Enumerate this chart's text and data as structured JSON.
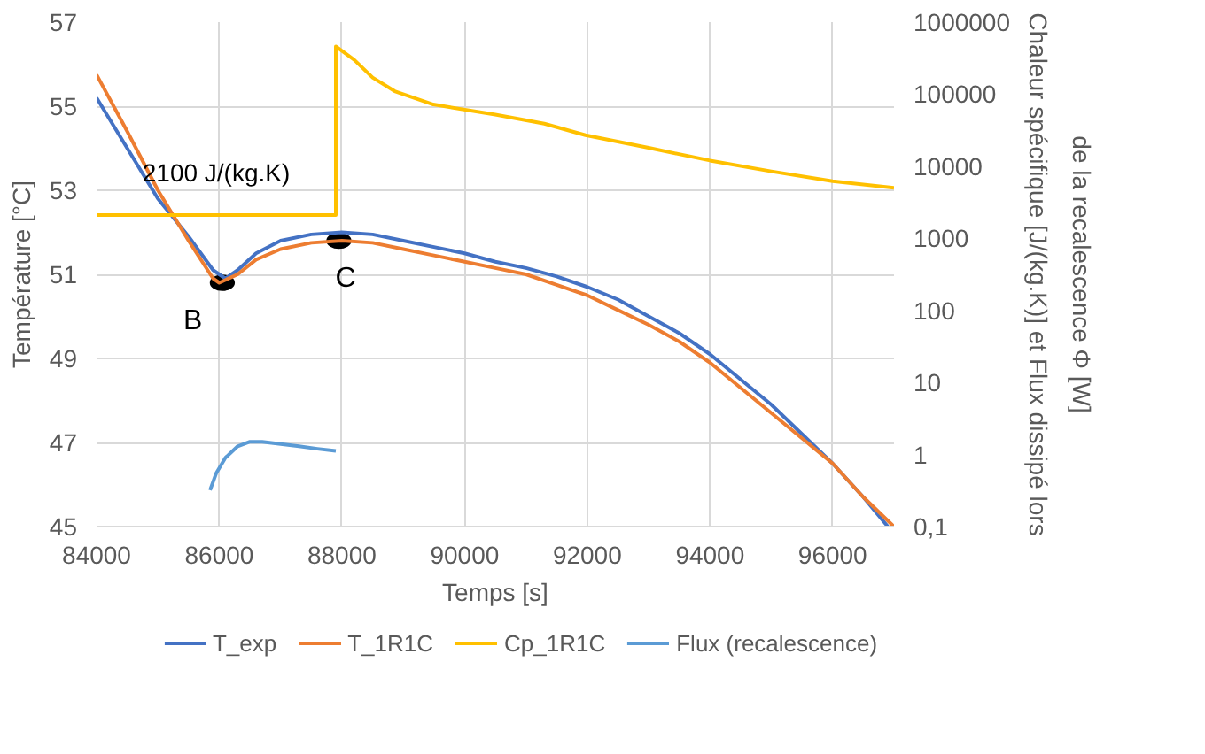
{
  "chart_data": {
    "type": "line",
    "xlabel": "Temps [s]",
    "ylabel": "Température [°C]",
    "y2label": "Chaleur spécifique [J/(kg.K)] et Flux dissipé lors\nde la recalescence Φ [W]",
    "xlim": [
      84000,
      97000
    ],
    "xticks": [
      84000,
      86000,
      88000,
      90000,
      92000,
      94000,
      96000
    ],
    "ylim": [
      45,
      57
    ],
    "yticks": [
      45,
      47,
      49,
      51,
      53,
      55,
      57
    ],
    "y2lim": [
      0.1,
      1000000
    ],
    "y2ticks": [
      {
        "value": 0.1,
        "label": "0,1"
      },
      1,
      10,
      100,
      1000,
      10000,
      100000,
      1000000
    ],
    "log": "y2",
    "grid": true,
    "legend": "bottom",
    "marker": "none",
    "line_style": "solid",
    "series": [
      {
        "name": "T_exp",
        "color": "#4472c4",
        "x": [
          84000,
          84500,
          85000,
          85500,
          85900,
          86100,
          86300,
          86600,
          87000,
          87500,
          88000,
          88500,
          89000,
          89500,
          90000,
          90500,
          91000,
          91500,
          92000,
          92500,
          93000,
          93500,
          94000,
          94500,
          95000,
          95500,
          96000,
          96500,
          96900
        ],
        "values": [
          55.2,
          54.0,
          52.8,
          51.9,
          51.1,
          50.9,
          51.1,
          51.5,
          51.8,
          51.95,
          52.0,
          51.95,
          51.8,
          51.65,
          51.5,
          51.3,
          51.15,
          50.95,
          50.7,
          50.4,
          50.0,
          49.6,
          49.1,
          48.5,
          47.9,
          47.2,
          46.5,
          45.7,
          45.0
        ]
      },
      {
        "name": "T_1R1C",
        "color": "#ed7d31",
        "x": [
          84000,
          84500,
          85000,
          85500,
          85900,
          86000,
          86300,
          86600,
          87000,
          87500,
          88000,
          88500,
          89000,
          89500,
          90000,
          90500,
          91000,
          91500,
          92000,
          92500,
          93000,
          93500,
          94000,
          94500,
          95000,
          95500,
          96000,
          96500,
          97000
        ],
        "values": [
          55.75,
          54.4,
          53.0,
          51.8,
          50.9,
          50.8,
          51.0,
          51.35,
          51.6,
          51.75,
          51.8,
          51.75,
          51.6,
          51.45,
          51.3,
          51.15,
          51.0,
          50.75,
          50.5,
          50.15,
          49.8,
          49.4,
          48.9,
          48.3,
          47.7,
          47.1,
          46.5,
          45.7,
          45.0
        ]
      },
      {
        "name": "Cp_1R1C",
        "color": "#ffc000",
        "axis": "y2",
        "x": [
          84000,
          87900,
          87900,
          88200,
          88500,
          88860,
          89490,
          90500,
          91300,
          91970,
          93000,
          94000,
          95000,
          96000,
          97000
        ],
        "values": [
          2100,
          2100,
          460000,
          300000,
          170000,
          110000,
          72000,
          52000,
          39000,
          27000,
          18000,
          12000,
          8500,
          6200,
          5000
        ]
      },
      {
        "name": "Flux (recalescence)",
        "color": "#5b9bd5",
        "axis": "y2",
        "x": [
          85850,
          85950,
          86100,
          86300,
          86500,
          86700,
          87000,
          87300,
          87600,
          87900
        ],
        "values": [
          0.32,
          0.55,
          0.9,
          1.3,
          1.5,
          1.5,
          1.4,
          1.3,
          1.2,
          1.12
        ]
      }
    ],
    "annotations": [
      "2100 J/(kg.K)",
      {
        "text": "B",
        "x": 86050,
        "y": 50.8
      },
      {
        "text": "C",
        "x": 87950,
        "y": 51.8
      }
    ]
  }
}
